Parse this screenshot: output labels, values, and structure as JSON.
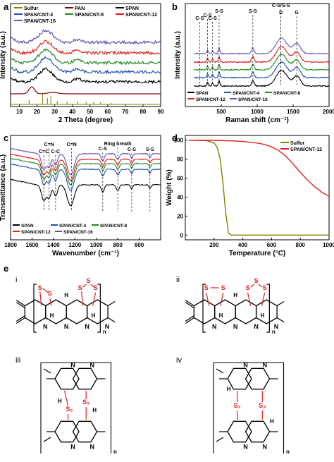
{
  "panel_labels": [
    "a",
    "b",
    "c",
    "d",
    "e"
  ],
  "chart_data": [
    {
      "id": "a",
      "type": "line",
      "xlabel": "2 Theta (degree)",
      "ylabel": "Intensity (a.u.)",
      "xlim": [
        5,
        90
      ],
      "xticks": [
        10,
        20,
        30,
        40,
        50,
        60,
        70,
        80,
        90
      ],
      "legend": [
        {
          "name": "Sulfur",
          "color": "#808000"
        },
        {
          "name": "PAN",
          "color": "#8b0000"
        },
        {
          "name": "SPAN",
          "color": "#000000"
        },
        {
          "name": "SPAN/CNT-4",
          "color": "#1f4fb5"
        },
        {
          "name": "SPAN/CNT-8",
          "color": "#1e8a1e"
        },
        {
          "name": "SPAN/CNT-12",
          "color": "#e0201b"
        },
        {
          "name": "SPAN/CNT-16",
          "color": "#6a4fb5"
        }
      ],
      "peak_center": 25
    },
    {
      "id": "b",
      "type": "line",
      "xlabel": "Raman shift (cm⁻¹)",
      "ylabel": "Intensity (a.u.)",
      "xlim": [
        0,
        2000
      ],
      "xticks": [
        500,
        1000,
        1500,
        2000
      ],
      "legend": [
        {
          "name": "SPAN",
          "color": "#000000"
        },
        {
          "name": "SPAN/CNT-4",
          "color": "#1f4fb5"
        },
        {
          "name": "SPAN/CNT-8",
          "color": "#1e8a1e"
        },
        {
          "name": "SPAN/CNT-12",
          "color": "#e0201b"
        },
        {
          "name": "SPAN/CNT-16",
          "color": "#6a4fb5"
        }
      ],
      "annotations": [
        {
          "label": "C-S",
          "x": 200
        },
        {
          "label": "C-S",
          "x": 310
        },
        {
          "label": "C-S",
          "x": 380
        },
        {
          "label": "S-S",
          "x": 470
        },
        {
          "label": "S-S",
          "x": 940
        },
        {
          "label": "C-S/S-S",
          "x": 1330
        },
        {
          "label": "D",
          "x": 1330
        },
        {
          "label": "G",
          "x": 1550
        }
      ]
    },
    {
      "id": "c",
      "type": "line",
      "xlabel": "Wavenumber (cm⁻¹)",
      "ylabel": "Transmittance (a.u.)",
      "xlim": [
        1800,
        400
      ],
      "xticks": [
        1800,
        1600,
        1400,
        1200,
        1000,
        800,
        600
      ],
      "legend": [
        {
          "name": "SPAN",
          "color": "#000000"
        },
        {
          "name": "SPAN/CNT-4",
          "color": "#1f4fb5"
        },
        {
          "name": "SPAN/CNT-8",
          "color": "#1e8a1e"
        },
        {
          "name": "SPAN/CNT-12",
          "color": "#e0201b"
        },
        {
          "name": "SPAN/CNT-16",
          "color": "#6a4fb5"
        }
      ],
      "annotations": [
        {
          "label": "C=C",
          "x": 1490
        },
        {
          "label": "C=N",
          "x": 1440
        },
        {
          "label": "C-C",
          "x": 1380
        },
        {
          "label": "C=N",
          "x": 1230
        },
        {
          "label": "C-S",
          "x": 940
        },
        {
          "label": "Ring breath",
          "x": 800
        },
        {
          "label": "C-S",
          "x": 670
        },
        {
          "label": "S-S",
          "x": 500
        }
      ]
    },
    {
      "id": "d",
      "type": "line",
      "xlabel": "Temperature (°C)",
      "ylabel": "Weight (%)",
      "xlim": [
        0,
        1000
      ],
      "ylim": [
        -5,
        105
      ],
      "xticks": [
        200,
        400,
        600,
        800,
        1000
      ],
      "yticks": [
        0,
        20,
        40,
        60,
        80,
        100
      ],
      "legend": [
        {
          "name": "Sulfur",
          "color": "#808000"
        },
        {
          "name": "SPAN/CNT-12",
          "color": "#e0201b"
        }
      ],
      "series": [
        {
          "name": "Sulfur",
          "x": [
            25,
            150,
            200,
            220,
            240,
            260,
            280,
            300,
            320,
            1000
          ],
          "y": [
            100,
            99.5,
            97,
            93,
            82,
            58,
            25,
            2,
            0,
            0
          ]
        },
        {
          "name": "SPAN/CNT-12",
          "x": [
            25,
            200,
            300,
            400,
            500,
            550,
            600,
            650,
            700,
            750,
            800,
            850,
            900,
            950,
            1000
          ],
          "y": [
            100,
            99.8,
            99.4,
            98.6,
            97,
            95.5,
            93,
            89,
            83,
            75,
            66,
            58,
            51,
            45,
            41
          ]
        }
      ]
    }
  ],
  "structures": {
    "labels": [
      "i",
      "ii",
      "iii",
      "iv"
    ],
    "atoms": {
      "S": "S",
      "N": "N",
      "H": "H",
      "n": "n",
      "S2": "S₂",
      "S3": "S₃"
    },
    "sulfur_color": "#e0201b"
  }
}
